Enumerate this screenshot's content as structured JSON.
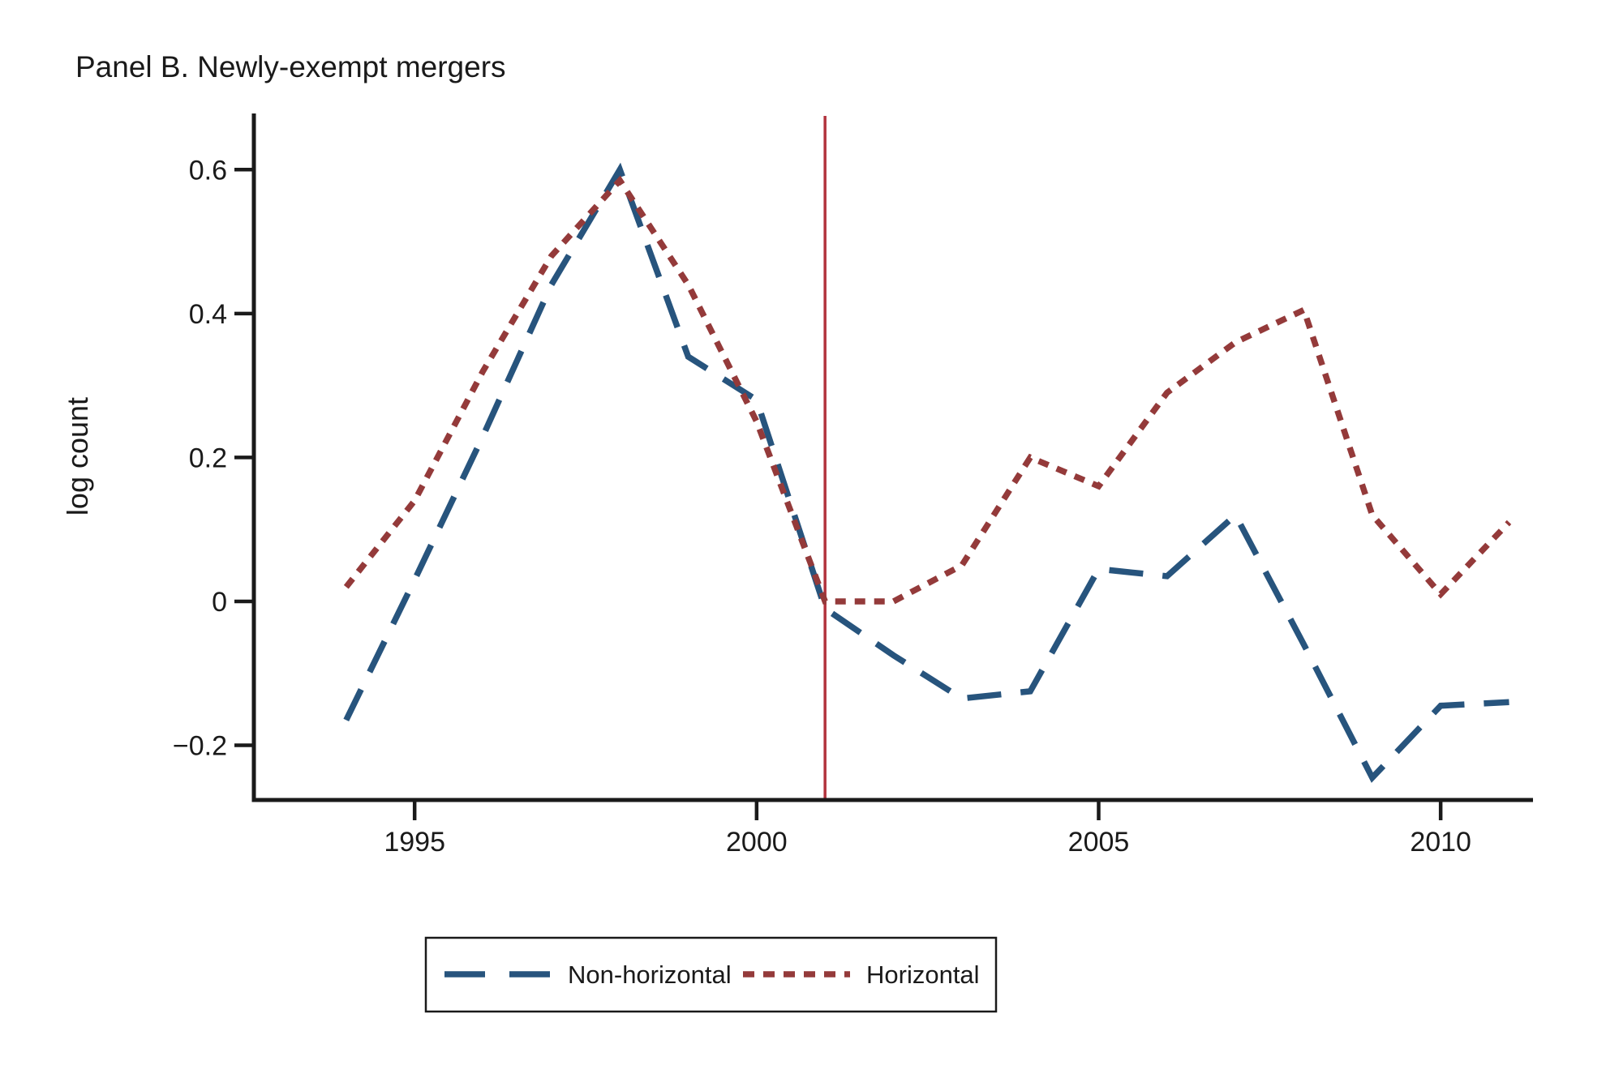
{
  "title": "Panel B. Newly-exempt mergers",
  "y_axis_label": "log count",
  "legend": {
    "non_horizontal_label": "Non-horizontal",
    "horizontal_label": "Horizontal"
  },
  "colors": {
    "non_horizontal": "#27547d",
    "horizontal": "#943a3a",
    "event_line": "#b2333e",
    "axis": "#1a1a1a"
  },
  "chart_data": {
    "type": "line",
    "title": "Panel B. Newly-exempt mergers",
    "xlabel": "",
    "ylabel": "log count",
    "x_range": [
      1992.65,
      2011.35
    ],
    "y_range": [
      -0.276,
      0.678
    ],
    "x_ticks": [
      1995,
      2000,
      2005,
      2010
    ],
    "x_tick_labels": [
      "1995",
      "2000",
      "2005",
      "2010"
    ],
    "y_ticks": [
      0.6,
      0.4,
      0.2,
      0,
      -0.2
    ],
    "y_tick_labels": [
      "0.6",
      "0.4",
      "0.2",
      "0",
      "−0.2"
    ],
    "grid": false,
    "legend_position": "bottom-center-boxed",
    "vline_x": 2001,
    "x": [
      1994,
      1995,
      1996,
      1997,
      1998,
      1999,
      2000,
      2001,
      2002,
      2003,
      2004,
      2005,
      2006,
      2007,
      2008,
      2009,
      2010,
      2011
    ],
    "series": [
      {
        "name": "Non-horizontal",
        "dash": "long",
        "color_key": "non_horizontal",
        "values": [
          -0.165,
          0.03,
          0.23,
          0.44,
          0.6,
          0.34,
          0.28,
          -0.01,
          -0.075,
          -0.135,
          -0.125,
          0.045,
          0.035,
          0.12,
          -0.06,
          -0.245,
          -0.145,
          -0.14
        ]
      },
      {
        "name": "Horizontal",
        "dash": "short",
        "color_key": "horizontal",
        "values": [
          0.02,
          0.14,
          0.32,
          0.48,
          0.585,
          0.44,
          0.25,
          0.0,
          0.0,
          0.05,
          0.2,
          0.16,
          0.29,
          0.36,
          0.405,
          0.12,
          0.01,
          0.11
        ]
      }
    ]
  }
}
